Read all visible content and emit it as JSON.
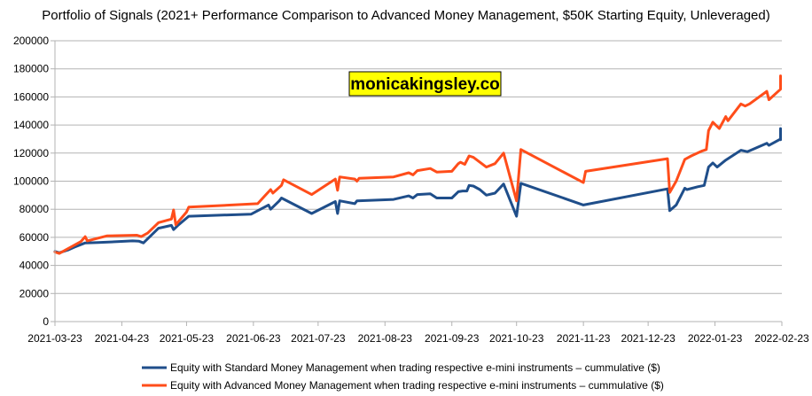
{
  "chart_data": {
    "type": "line",
    "title": "Portfolio of Signals (2021+ Performance Comparison to Advanced Money Management, $50K Starting Equity, Unleveraged)",
    "watermark": "monicakingsley.co",
    "xlabel": "",
    "ylabel": "",
    "ylim": [
      0,
      200000
    ],
    "y_ticks": [
      "0",
      "20000",
      "40000",
      "60000",
      "80000",
      "100000",
      "120000",
      "140000",
      "160000",
      "180000",
      "200000"
    ],
    "x_ticks": [
      "2021-03-23",
      "2021-04-23",
      "2021-05-23",
      "2021-06-23",
      "2021-07-23",
      "2021-08-23",
      "2021-09-23",
      "2021-10-23",
      "2021-11-23",
      "2021-12-23",
      "2022-01-23",
      "2022-02-23"
    ],
    "xlim": [
      "2021-03-23",
      "2022-02-23"
    ],
    "grid": "horizontal",
    "legend_position": "bottom",
    "series": [
      {
        "name": "Equity with Standard Money Management when trading respective e-mini instruments – cummulative ($)",
        "color": "#1f4e8a",
        "points": [
          [
            "2021-03-23",
            50000
          ],
          [
            "2021-03-25",
            49000
          ],
          [
            "2021-03-29",
            51000
          ],
          [
            "2021-04-01",
            53000
          ],
          [
            "2021-04-06",
            56000
          ],
          [
            "2021-04-12",
            56300
          ],
          [
            "2021-04-28",
            57500
          ],
          [
            "2021-05-01",
            57200
          ],
          [
            "2021-05-03",
            56000
          ],
          [
            "2021-05-10",
            66500
          ],
          [
            "2021-05-16",
            68500
          ],
          [
            "2021-05-17",
            65500
          ],
          [
            "2021-05-19",
            68500
          ],
          [
            "2021-05-24",
            75000
          ],
          [
            "2021-06-22",
            76500
          ],
          [
            "2021-06-30",
            83000
          ],
          [
            "2021-07-01",
            80000
          ],
          [
            "2021-07-05",
            86000
          ],
          [
            "2021-07-06",
            88000
          ],
          [
            "2021-07-20",
            77000
          ],
          [
            "2021-07-31",
            85500
          ],
          [
            "2021-08-01",
            77000
          ],
          [
            "2021-08-02",
            86000
          ],
          [
            "2021-08-09",
            84000
          ],
          [
            "2021-08-10",
            86000
          ],
          [
            "2021-08-27",
            87000
          ],
          [
            "2021-09-03",
            89500
          ],
          [
            "2021-09-05",
            88000
          ],
          [
            "2021-09-07",
            90500
          ],
          [
            "2021-09-13",
            91000
          ],
          [
            "2021-09-16",
            88000
          ],
          [
            "2021-09-23",
            88000
          ],
          [
            "2021-09-26",
            92500
          ],
          [
            "2021-09-28",
            93000
          ],
          [
            "2021-09-30",
            93000
          ],
          [
            "2021-10-01",
            97000
          ],
          [
            "2021-10-03",
            96500
          ],
          [
            "2021-10-06",
            94000
          ],
          [
            "2021-10-09",
            90000
          ],
          [
            "2021-10-13",
            91500
          ],
          [
            "2021-10-17",
            98000
          ],
          [
            "2021-10-23",
            75000
          ],
          [
            "2021-10-25",
            98500
          ],
          [
            "2021-11-23",
            83000
          ],
          [
            "2022-01-01",
            94500
          ],
          [
            "2022-01-02",
            79000
          ],
          [
            "2022-01-05",
            83000
          ],
          [
            "2022-01-09",
            95000
          ],
          [
            "2022-01-10",
            94000
          ],
          [
            "2022-01-15",
            96000
          ],
          [
            "2022-01-18",
            97000
          ],
          [
            "2022-01-20",
            110000
          ],
          [
            "2022-01-22",
            113000
          ],
          [
            "2022-01-24",
            110000
          ],
          [
            "2022-01-28",
            115000
          ],
          [
            "2022-02-04",
            122000
          ],
          [
            "2022-02-07",
            121000
          ],
          [
            "2022-02-16",
            127000
          ],
          [
            "2022-02-17",
            125500
          ],
          [
            "2022-02-26",
            130000
          ],
          [
            "2022-02-27",
            129500
          ],
          [
            "2022-03-04",
            130000
          ],
          [
            "2022-03-06",
            137500
          ],
          [
            "2022-03-08",
            137000
          ]
        ]
      },
      {
        "name": "Equity with Advanced Money Management when trading respective e-mini instruments – cummulative ($)",
        "color": "#ff4d1a",
        "points": [
          [
            "2021-03-23",
            49500
          ],
          [
            "2021-03-25",
            48500
          ],
          [
            "2021-04-04",
            57000
          ],
          [
            "2021-04-06",
            60500
          ],
          [
            "2021-04-07",
            57500
          ],
          [
            "2021-04-16",
            61000
          ],
          [
            "2021-04-30",
            61500
          ],
          [
            "2021-05-02",
            60500
          ],
          [
            "2021-05-05",
            63000
          ],
          [
            "2021-05-10",
            70500
          ],
          [
            "2021-05-16",
            73000
          ],
          [
            "2021-05-17",
            79500
          ],
          [
            "2021-05-18",
            69000
          ],
          [
            "2021-05-23",
            78000
          ],
          [
            "2021-05-24",
            81500
          ],
          [
            "2021-06-25",
            84000
          ],
          [
            "2021-06-28",
            89000
          ],
          [
            "2021-07-01",
            94000
          ],
          [
            "2021-07-02",
            91500
          ],
          [
            "2021-07-06",
            97000
          ],
          [
            "2021-07-07",
            101000
          ],
          [
            "2021-07-20",
            90500
          ],
          [
            "2021-07-31",
            101500
          ],
          [
            "2021-08-01",
            93500
          ],
          [
            "2021-08-02",
            103000
          ],
          [
            "2021-08-09",
            101500
          ],
          [
            "2021-08-10",
            100000
          ],
          [
            "2021-08-11",
            102000
          ],
          [
            "2021-08-27",
            103000
          ],
          [
            "2021-09-03",
            106000
          ],
          [
            "2021-09-05",
            104500
          ],
          [
            "2021-09-07",
            107500
          ],
          [
            "2021-09-13",
            109000
          ],
          [
            "2021-09-16",
            106500
          ],
          [
            "2021-09-23",
            107000
          ],
          [
            "2021-09-26",
            112500
          ],
          [
            "2021-09-27",
            113500
          ],
          [
            "2021-09-29",
            112000
          ],
          [
            "2021-10-01",
            118000
          ],
          [
            "2021-10-03",
            117000
          ],
          [
            "2021-10-06",
            113500
          ],
          [
            "2021-10-09",
            110000
          ],
          [
            "2021-10-13",
            112500
          ],
          [
            "2021-10-17",
            120000
          ],
          [
            "2021-10-23",
            86000
          ],
          [
            "2021-10-25",
            122500
          ],
          [
            "2021-11-23",
            99000
          ],
          [
            "2021-11-24",
            107000
          ],
          [
            "2022-01-01",
            116000
          ],
          [
            "2022-01-02",
            92000
          ],
          [
            "2022-01-05",
            100000
          ],
          [
            "2022-01-09",
            115500
          ],
          [
            "2022-01-12",
            118000
          ],
          [
            "2022-01-17",
            121500
          ],
          [
            "2022-01-19",
            122500
          ],
          [
            "2022-01-20",
            136000
          ],
          [
            "2022-01-21",
            139000
          ],
          [
            "2022-01-22",
            142000
          ],
          [
            "2022-01-25",
            137500
          ],
          [
            "2022-01-28",
            146000
          ],
          [
            "2022-01-29",
            143000
          ],
          [
            "2022-02-04",
            155000
          ],
          [
            "2022-02-06",
            153500
          ],
          [
            "2022-02-08",
            155000
          ],
          [
            "2022-02-16",
            164000
          ],
          [
            "2022-02-17",
            158000
          ],
          [
            "2022-02-26",
            165500
          ],
          [
            "2022-03-03",
            165500
          ],
          [
            "2022-03-05",
            175000
          ],
          [
            "2022-03-07",
            170000
          ],
          [
            "2022-03-08",
            173000
          ]
        ]
      }
    ]
  }
}
